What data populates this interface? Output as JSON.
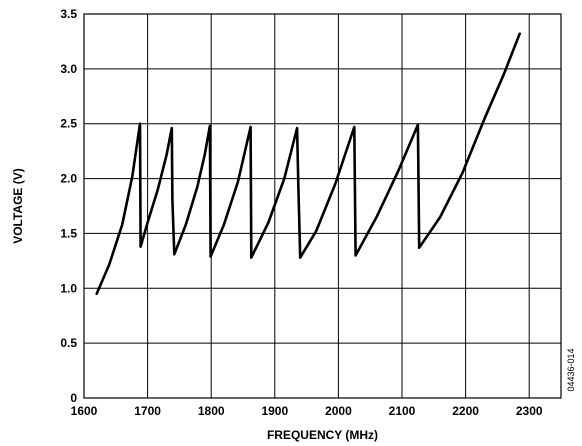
{
  "chart_data": {
    "type": "line",
    "xlabel": "FREQUENCY (MHz)",
    "ylabel": "VOLTAGE (V)",
    "xlim": [
      1600,
      2350
    ],
    "ylim": [
      0,
      3.5
    ],
    "x_ticks": [
      "1600",
      "1700",
      "1800",
      "1900",
      "2000",
      "2100",
      "2200",
      "2300"
    ],
    "y_ticks": [
      "0",
      "0.5",
      "1.0",
      "1.5",
      "2.0",
      "2.5",
      "3.0",
      "3.5"
    ],
    "grid": true,
    "figure_code": "04436-014",
    "series": [
      {
        "color": "#000000",
        "points": [
          [
            1620,
            0.95
          ],
          [
            1640,
            1.22
          ],
          [
            1660,
            1.58
          ],
          [
            1676,
            2.02
          ],
          [
            1688,
            2.5
          ],
          [
            1689,
            1.38
          ],
          [
            1700,
            1.6
          ],
          [
            1716,
            1.9
          ],
          [
            1730,
            2.22
          ],
          [
            1738,
            2.46
          ],
          [
            1739,
            1.8
          ],
          [
            1742,
            1.31
          ],
          [
            1760,
            1.58
          ],
          [
            1778,
            1.92
          ],
          [
            1790,
            2.22
          ],
          [
            1798,
            2.48
          ],
          [
            1799,
            1.29
          ],
          [
            1820,
            1.58
          ],
          [
            1842,
            1.97
          ],
          [
            1862,
            2.47
          ],
          [
            1863,
            1.28
          ],
          [
            1890,
            1.6
          ],
          [
            1915,
            2.0
          ],
          [
            1935,
            2.46
          ],
          [
            1937,
            1.95
          ],
          [
            1940,
            1.28
          ],
          [
            1965,
            1.52
          ],
          [
            1995,
            1.95
          ],
          [
            2025,
            2.47
          ],
          [
            2027,
            1.3
          ],
          [
            2060,
            1.65
          ],
          [
            2095,
            2.08
          ],
          [
            2125,
            2.49
          ],
          [
            2127,
            1.37
          ],
          [
            2160,
            1.65
          ],
          [
            2195,
            2.05
          ],
          [
            2230,
            2.55
          ],
          [
            2260,
            2.95
          ],
          [
            2285,
            3.32
          ]
        ]
      }
    ]
  }
}
